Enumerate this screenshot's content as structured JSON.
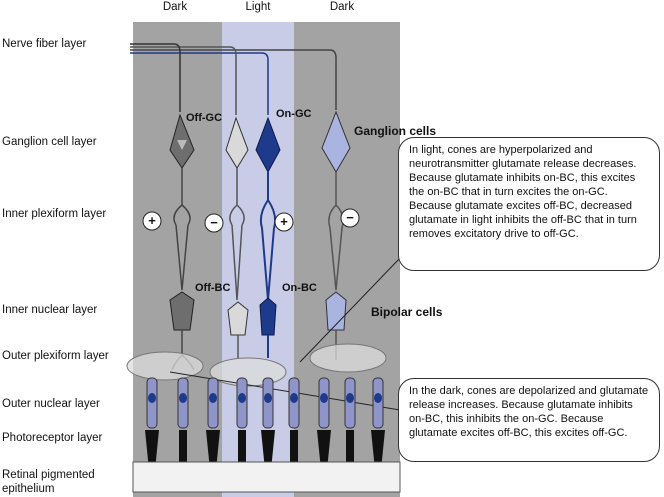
{
  "columns": {
    "dark_left": "Dark",
    "light": "Light",
    "dark_right": "Dark"
  },
  "layers": {
    "nerve_fiber": "Nerve fiber layer",
    "ganglion_cell": "Ganglion cell layer",
    "inner_plexiform": "Inner plexiform layer",
    "inner_nuclear": "Inner nuclear layer",
    "outer_plexiform": "Outer plexiform layer",
    "outer_nuclear": "Outer nuclear layer",
    "photoreceptor": "Photoreceptor layer",
    "rpe_line1": "Retinal pigmented",
    "rpe_line2": "epithelium"
  },
  "cells": {
    "off_gc": "Off-GC",
    "on_gc": "On-GC",
    "off_bc": "Off-BC",
    "on_bc": "On-BC",
    "ganglion_cells": "Ganglion cells",
    "bipolar_cells": "Bipolar cells"
  },
  "signs": {
    "plus": "+",
    "minus": "−"
  },
  "callouts": {
    "light": "In light, cones are hyperpolarized and neurotransmitter glutamate release decreases. Because glutamate inhibits on-BC, this excites the on-BC that in turn excites the on-GC. Because glutamate excites off-BC, decreased glutamate in light inhibits the off-BC that in turn removes excitatory drive to off-GC.",
    "dark": "In the dark, cones are depolarized and glutamate release increases. Because glutamate inhibits on-BC, this inhibits the on-GC. Because glutamate excites off-BC, this excites off-GC."
  },
  "colors": {
    "dark_bg": "#a3a3a3",
    "light_bg": "#c9cce6",
    "off_cell": "#6e6e6e",
    "off_light_cell": "#d9d9d9",
    "on_cell": "#1e3a8a",
    "on_light_cell": "#a9b4e0",
    "photoreceptor": "#8f95c9"
  }
}
